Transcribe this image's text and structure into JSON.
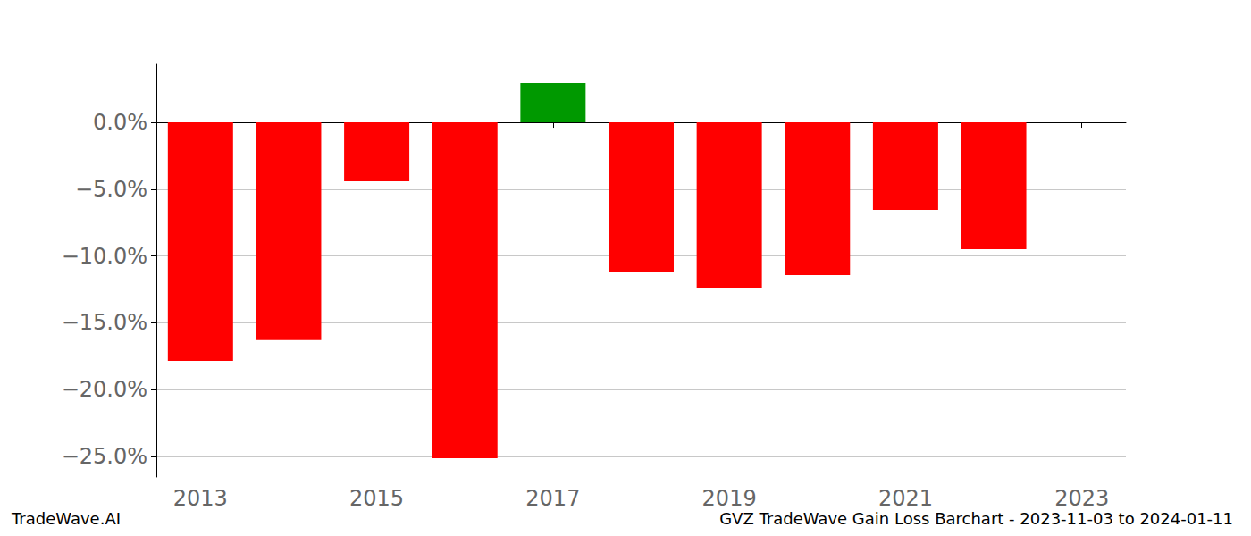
{
  "chart_data": {
    "type": "bar",
    "title": "GVZ TradeWave Gain Loss Barchart - 2023-11-03 to 2024-01-11",
    "subtitle": "TradeWave.AI",
    "categories": [
      "2013",
      null,
      "2015",
      null,
      "2017",
      null,
      "2019",
      null,
      "2021",
      null,
      "2023"
    ],
    "values": [
      -17.85,
      -16.3,
      -4.41,
      -25.13,
      2.94,
      -11.23,
      -12.37,
      -11.43,
      -6.55,
      -9.49,
      null
    ],
    "colors": [
      "#ff0000",
      "#ff0000",
      "#ff0000",
      "#ff0000",
      "#009900",
      "#ff0000",
      "#ff0000",
      "#ff0000",
      "#ff0000",
      "#ff0000"
    ],
    "ylim": [
      -26.54,
      4.35
    ],
    "yticks": [
      {
        "value": -25,
        "label": "−25.0%"
      },
      {
        "value": -20,
        "label": "−20.0%"
      },
      {
        "value": -15,
        "label": "−15.0%"
      },
      {
        "value": -10,
        "label": "−10.0%"
      },
      {
        "value": -5,
        "label": "−5.0%"
      },
      {
        "value": 0,
        "label": "0.0%"
      }
    ],
    "grid": true
  }
}
